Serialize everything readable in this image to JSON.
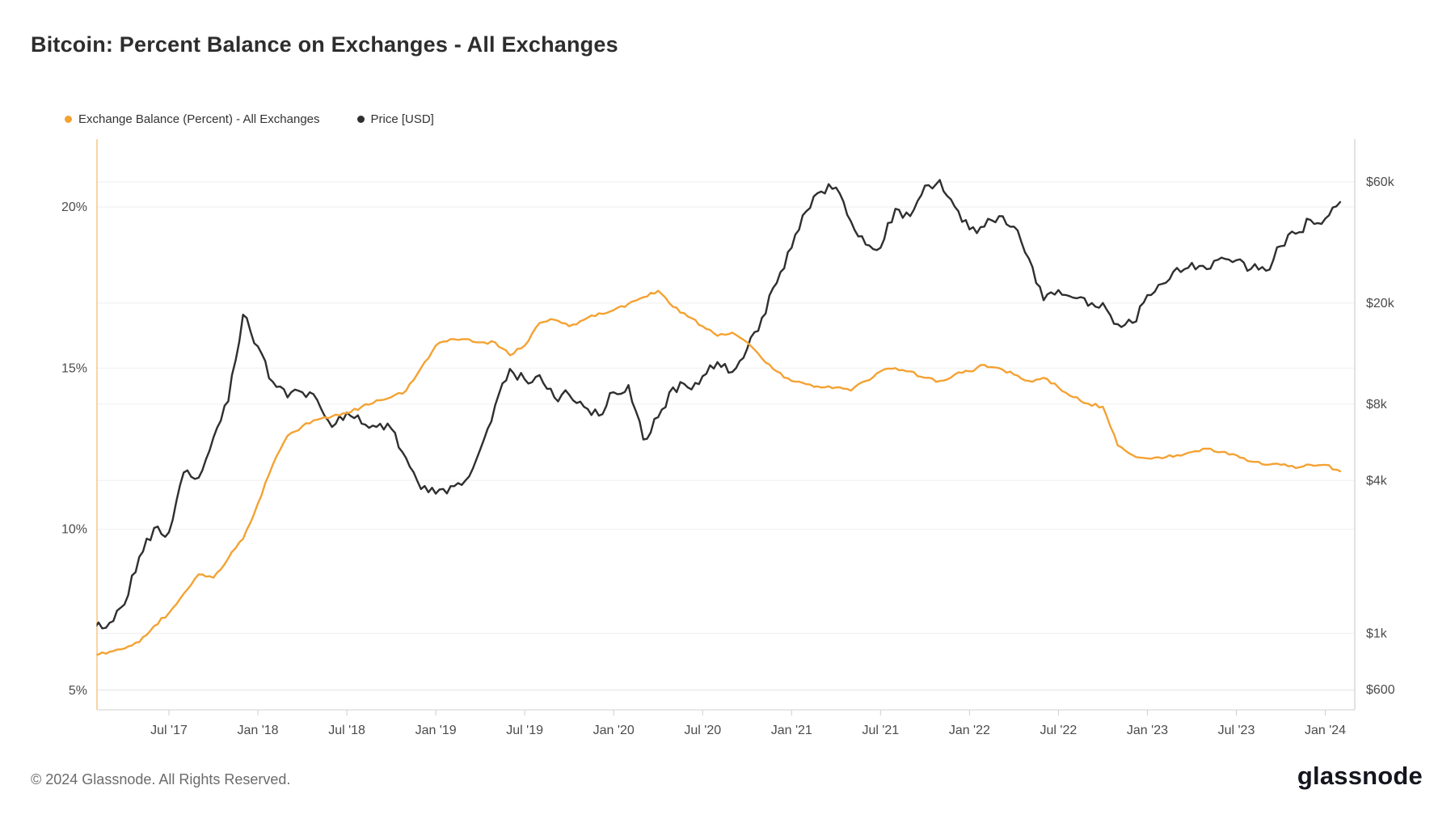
{
  "title": "Bitcoin: Percent Balance on Exchanges - All Exchanges",
  "legend": [
    {
      "label": "Exchange Balance (Percent) - All Exchanges",
      "color": "#f4a233"
    },
    {
      "label": "Price [USD]",
      "color": "#2f2f2f"
    }
  ],
  "footer": {
    "copyright": "© 2024 Glassnode. All Rights Reserved.",
    "brand": "glassnode"
  },
  "chart_data": {
    "type": "line",
    "title": "Bitcoin: Percent Balance on Exchanges - All Exchanges",
    "grid": true,
    "legend_position": "top-left",
    "x_ticks": [
      "Jul '17",
      "Jan '18",
      "Jul '18",
      "Jan '19",
      "Jul '19",
      "Jan '20",
      "Jul '20",
      "Jan '21",
      "Jul '21",
      "Jan '22",
      "Jul '22",
      "Jan '23",
      "Jul '23",
      "Jan '24"
    ],
    "left_axis": {
      "scale": "linear",
      "ticks": [
        5,
        10,
        15,
        20
      ],
      "tick_labels": [
        "5%",
        "10%",
        "15%",
        "20%"
      ],
      "range": [
        5,
        22.1
      ]
    },
    "right_axis": {
      "scale": "log",
      "ticks": [
        600,
        1000,
        4000,
        8000,
        20000,
        60000
      ],
      "tick_labels": [
        "$600",
        "$1k",
        "$4k",
        "$8k",
        "$20k",
        "$60k"
      ],
      "range": [
        600,
        88000
      ]
    },
    "x": [
      "2017-02",
      "2017-03",
      "2017-04",
      "2017-05",
      "2017-06",
      "2017-07",
      "2017-08",
      "2017-09",
      "2017-10",
      "2017-11",
      "2017-12",
      "2018-01",
      "2018-02",
      "2018-03",
      "2018-04",
      "2018-05",
      "2018-06",
      "2018-07",
      "2018-08",
      "2018-09",
      "2018-10",
      "2018-11",
      "2018-12",
      "2019-01",
      "2019-02",
      "2019-03",
      "2019-04",
      "2019-05",
      "2019-06",
      "2019-07",
      "2019-08",
      "2019-09",
      "2019-10",
      "2019-11",
      "2019-12",
      "2020-01",
      "2020-02",
      "2020-03",
      "2020-04",
      "2020-05",
      "2020-06",
      "2020-07",
      "2020-08",
      "2020-09",
      "2020-10",
      "2020-11",
      "2020-12",
      "2021-01",
      "2021-02",
      "2021-03",
      "2021-04",
      "2021-05",
      "2021-06",
      "2021-07",
      "2021-08",
      "2021-09",
      "2021-10",
      "2021-11",
      "2021-12",
      "2022-01",
      "2022-02",
      "2022-03",
      "2022-04",
      "2022-05",
      "2022-06",
      "2022-07",
      "2022-08",
      "2022-09",
      "2022-10",
      "2022-11",
      "2022-12",
      "2023-01",
      "2023-02",
      "2023-03",
      "2023-04",
      "2023-05",
      "2023-06",
      "2023-07",
      "2023-08",
      "2023-09",
      "2023-10",
      "2023-11",
      "2023-12",
      "2024-01",
      "2024-02"
    ],
    "series": [
      {
        "name": "Exchange Balance (Percent) - All Exchanges",
        "axis": "left",
        "unit": "%",
        "color": "#f4a233",
        "values": [
          6.1,
          6.2,
          6.3,
          6.5,
          7.0,
          7.4,
          8.0,
          8.6,
          8.5,
          9.1,
          9.7,
          10.8,
          12.0,
          12.9,
          13.2,
          13.4,
          13.5,
          13.6,
          13.8,
          14.0,
          14.1,
          14.3,
          15.0,
          15.7,
          15.9,
          15.9,
          15.8,
          15.8,
          15.4,
          15.7,
          16.4,
          16.5,
          16.3,
          16.5,
          16.7,
          16.8,
          17.0,
          17.2,
          17.4,
          16.9,
          16.6,
          16.3,
          16.0,
          16.1,
          15.8,
          15.3,
          14.9,
          14.6,
          14.5,
          14.4,
          14.4,
          14.3,
          14.6,
          14.9,
          15.0,
          14.9,
          14.7,
          14.6,
          14.8,
          14.9,
          15.1,
          15.0,
          14.8,
          14.6,
          14.7,
          14.4,
          14.1,
          13.9,
          13.8,
          12.6,
          12.3,
          12.2,
          12.2,
          12.3,
          12.4,
          12.5,
          12.4,
          12.3,
          12.1,
          12.0,
          12.0,
          11.9,
          12.0,
          12.0,
          11.8
        ]
      },
      {
        "name": "Price [USD]",
        "axis": "right",
        "unit": "USD",
        "color": "#2f2f2f",
        "values": [
          1050,
          1100,
          1300,
          2000,
          2600,
          2500,
          4300,
          4100,
          5900,
          8200,
          18000,
          13500,
          9800,
          8500,
          8900,
          8300,
          6500,
          7400,
          6700,
          6500,
          6400,
          4900,
          3700,
          3550,
          3800,
          4000,
          5300,
          7900,
          11000,
          10000,
          10400,
          8500,
          8700,
          7800,
          7200,
          8900,
          9500,
          5800,
          7100,
          9300,
          9300,
          10300,
          11700,
          10700,
          13200,
          17500,
          24000,
          33000,
          46000,
          55000,
          57000,
          42000,
          34000,
          33000,
          47000,
          44000,
          58000,
          61000,
          48000,
          39000,
          40000,
          44000,
          40000,
          30000,
          20500,
          22500,
          21000,
          19500,
          20000,
          16500,
          16700,
          21500,
          23800,
          27500,
          28800,
          27200,
          30200,
          29500,
          27300,
          26800,
          33500,
          37500,
          42500,
          43000,
          50000
        ]
      }
    ]
  }
}
